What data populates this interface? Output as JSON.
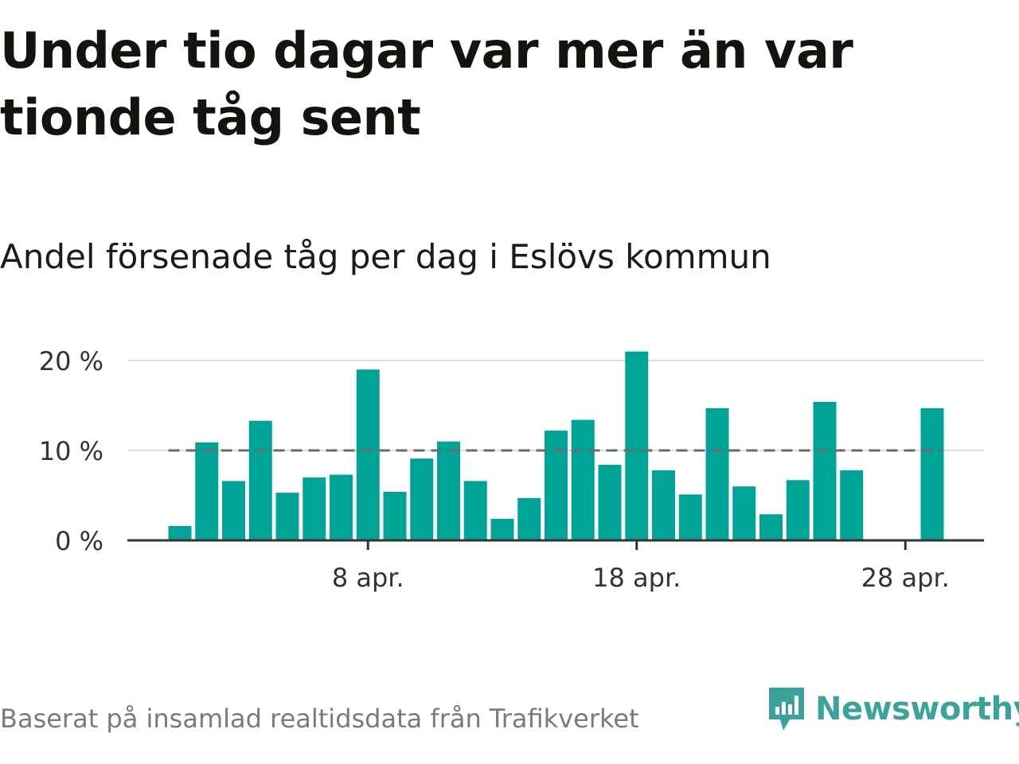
{
  "title": "Under tio dagar var mer än var tionde tåg sent",
  "subtitle": "Andel försenade tåg per dag i Eslövs kommun",
  "footer": {
    "source": "Baserat på insamlad realtidsdata från Trafikverket",
    "brand": "Newsworthy"
  },
  "colors": {
    "bar": "#00a497",
    "reference_line": "#6b6b6b",
    "grid": "#dddddd",
    "axis": "#333333",
    "brand": "#3aa39b"
  },
  "chart_data": {
    "type": "bar",
    "x_unit": "day of April",
    "x": [
      1,
      2,
      3,
      4,
      5,
      6,
      7,
      8,
      9,
      10,
      11,
      12,
      13,
      14,
      15,
      16,
      17,
      18,
      19,
      20,
      21,
      22,
      23,
      24,
      25,
      26,
      27,
      28,
      29
    ],
    "values": [
      1.6,
      10.9,
      6.6,
      13.3,
      5.3,
      7.0,
      7.3,
      19.0,
      5.4,
      9.1,
      11.0,
      6.6,
      2.4,
      4.7,
      12.2,
      13.4,
      8.4,
      21.0,
      7.8,
      5.1,
      14.7,
      6.0,
      2.9,
      6.7,
      15.4,
      7.8,
      0,
      0,
      14.7
    ],
    "reference_line": 10,
    "ylim": [
      0,
      22
    ],
    "y_ticks": [
      {
        "value": 0,
        "label": "0 %"
      },
      {
        "value": 10,
        "label": "10 %"
      },
      {
        "value": 20,
        "label": "20 %"
      }
    ],
    "x_ticks": [
      {
        "value": 8,
        "label": "8 apr."
      },
      {
        "value": 18,
        "label": "18 apr."
      },
      {
        "value": 28,
        "label": "28 apr."
      }
    ],
    "grid": true
  }
}
